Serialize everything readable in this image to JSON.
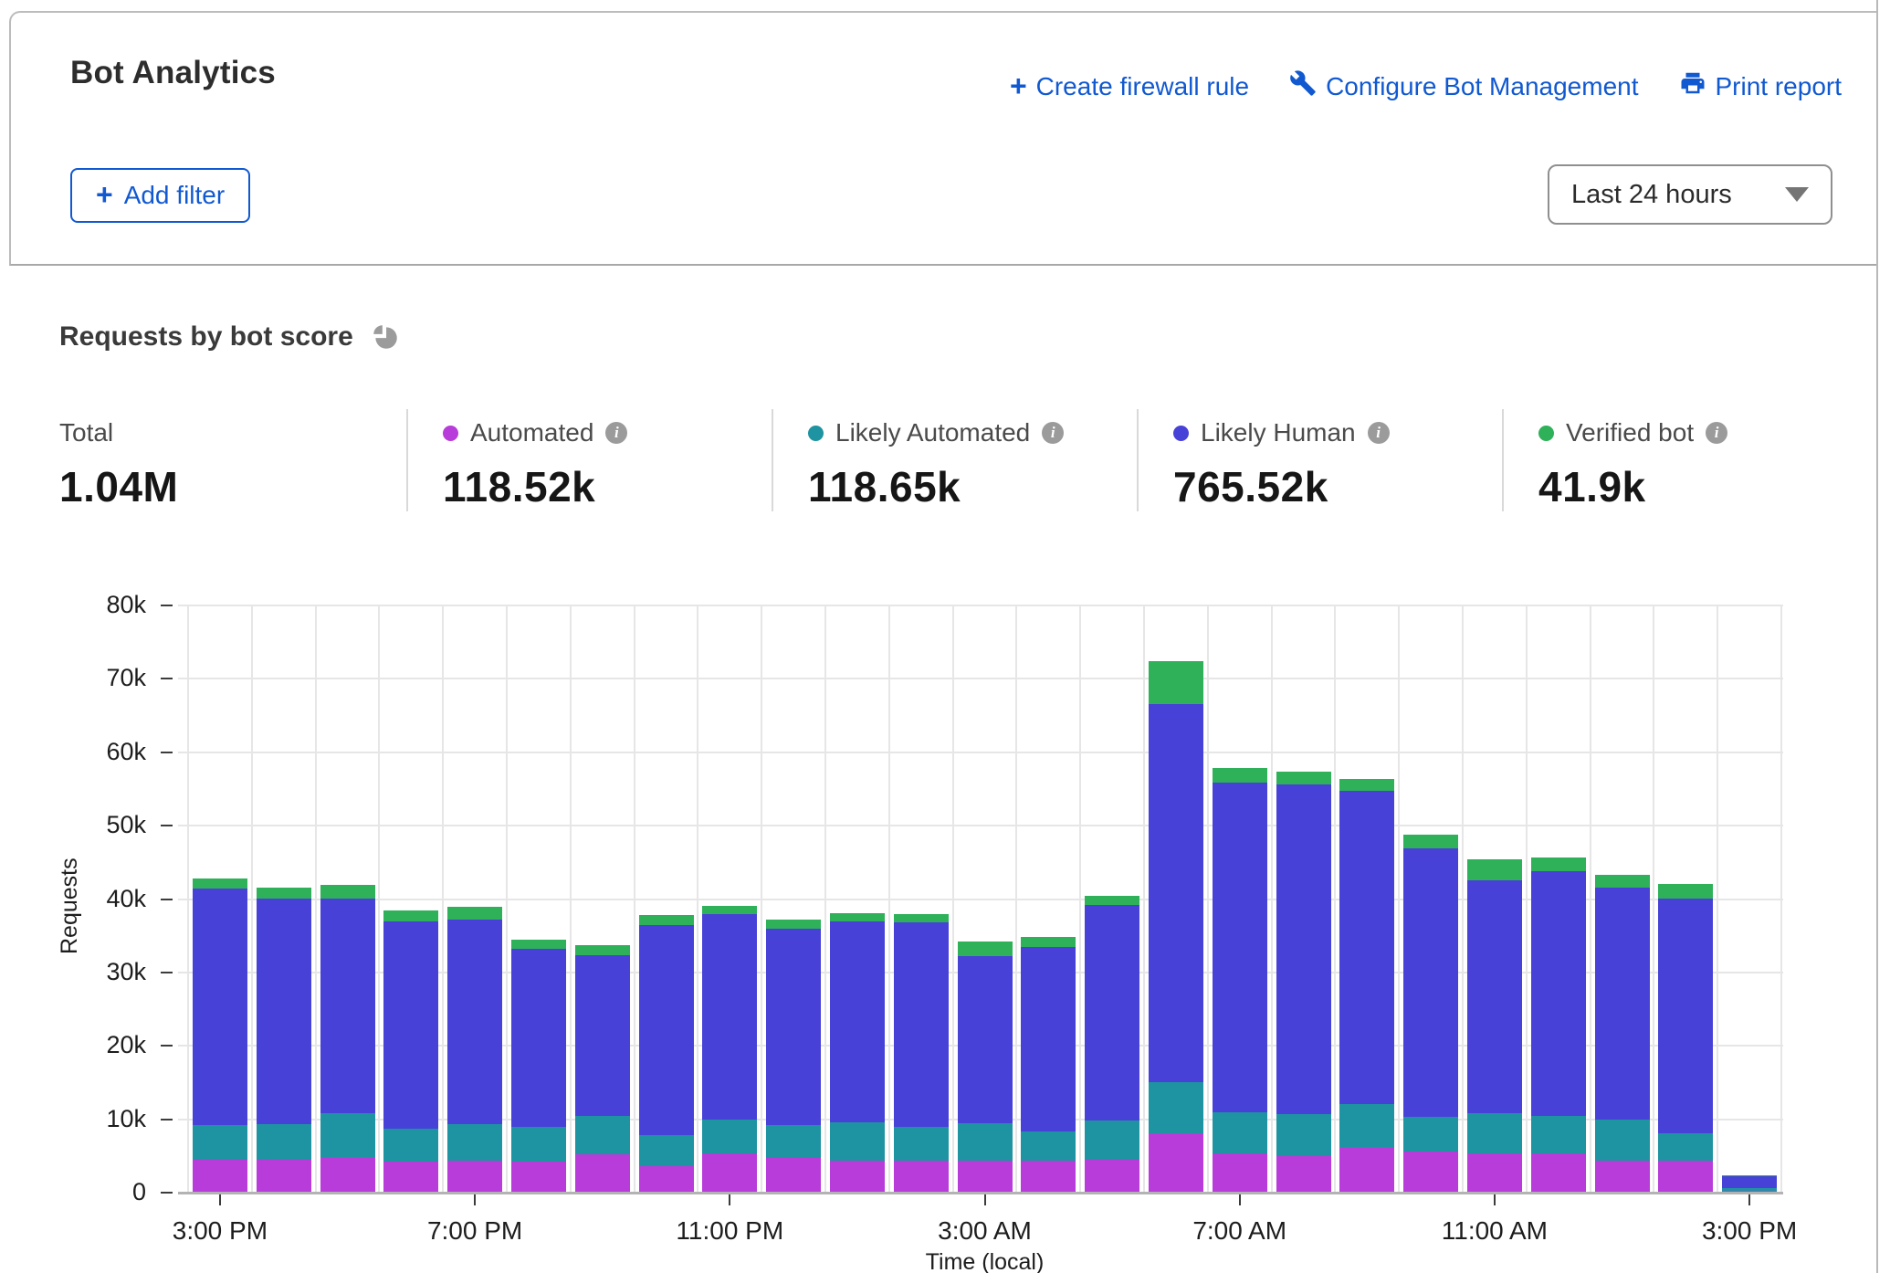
{
  "header": {
    "title": "Bot Analytics",
    "actions": [
      {
        "label": "Create firewall rule"
      },
      {
        "label": "Configure Bot Management"
      },
      {
        "label": "Print report"
      }
    ],
    "add_filter_label": "Add filter",
    "time_range_value": "Last 24 hours"
  },
  "section": {
    "title": "Requests by bot score"
  },
  "stats": {
    "total_label": "Total",
    "total_value": "1.04M",
    "legend": [
      {
        "label": "Automated",
        "value": "118.52k",
        "color": "#b83cd9"
      },
      {
        "label": "Likely Automated",
        "value": "118.65k",
        "color": "#1e93a1"
      },
      {
        "label": "Likely Human",
        "value": "765.52k",
        "color": "#4741d8"
      },
      {
        "label": "Verified bot",
        "value": "41.9k",
        "color": "#2eb158"
      }
    ]
  },
  "chart_data": {
    "type": "bar",
    "stacked": true,
    "title": "Requests by bot score",
    "xlabel": "Time (local)",
    "ylabel": "Requests",
    "ylim": [
      0,
      80000
    ],
    "ytick_step": 10000,
    "ytick_labels": [
      "0",
      "10k",
      "20k",
      "30k",
      "40k",
      "50k",
      "60k",
      "70k",
      "80k"
    ],
    "grid": true,
    "legend_position": "top",
    "x_tick_indices": [
      0,
      4,
      8,
      12,
      16,
      20,
      24
    ],
    "x_tick_labels": [
      "3:00 PM",
      "7:00 PM",
      "11:00 PM",
      "3:00 AM",
      "7:00 AM",
      "11:00 AM",
      "3:00 PM"
    ],
    "categories": [
      "3:00 PM",
      "4:00 PM",
      "5:00 PM",
      "6:00 PM",
      "7:00 PM",
      "8:00 PM",
      "9:00 PM",
      "10:00 PM",
      "11:00 PM",
      "12:00 AM",
      "1:00 AM",
      "2:00 AM",
      "3:00 AM",
      "4:00 AM",
      "5:00 AM",
      "6:00 AM",
      "7:00 AM",
      "8:00 AM",
      "9:00 AM",
      "10:00 AM",
      "11:00 AM",
      "12:00 PM",
      "1:00 PM",
      "2:00 PM",
      "3:00 PM"
    ],
    "series": [
      {
        "name": "Automated",
        "color": "#b83cd9",
        "values": [
          4500,
          4500,
          4800,
          4200,
          4400,
          4200,
          5200,
          3600,
          5400,
          4700,
          4300,
          4400,
          4400,
          4300,
          4500,
          8100,
          5300,
          5000,
          6200,
          5600,
          5400,
          5300,
          4300,
          4400,
          300
        ]
      },
      {
        "name": "Likely Automated",
        "color": "#1e93a1",
        "values": [
          4700,
          4800,
          6000,
          4500,
          4900,
          4800,
          5200,
          4200,
          4600,
          4500,
          5300,
          4600,
          5100,
          4000,
          5300,
          6900,
          5700,
          5700,
          5900,
          4700,
          5400,
          5200,
          5700,
          3700,
          300
        ]
      },
      {
        "name": "Likely Human",
        "color": "#4741d8",
        "values": [
          32200,
          30700,
          29300,
          28300,
          27900,
          24200,
          22000,
          28700,
          28000,
          26700,
          27300,
          27800,
          22700,
          25200,
          29400,
          51500,
          44900,
          44900,
          42600,
          36600,
          31700,
          33300,
          31500,
          32000,
          1600
        ]
      },
      {
        "name": "Verified bot",
        "color": "#2eb158",
        "values": [
          1400,
          1500,
          1800,
          1500,
          1700,
          1300,
          1300,
          1300,
          1100,
          1300,
          1200,
          1200,
          2000,
          1300,
          1200,
          5900,
          1900,
          1700,
          1700,
          1900,
          2900,
          1800,
          1800,
          2000,
          200
        ]
      }
    ]
  }
}
